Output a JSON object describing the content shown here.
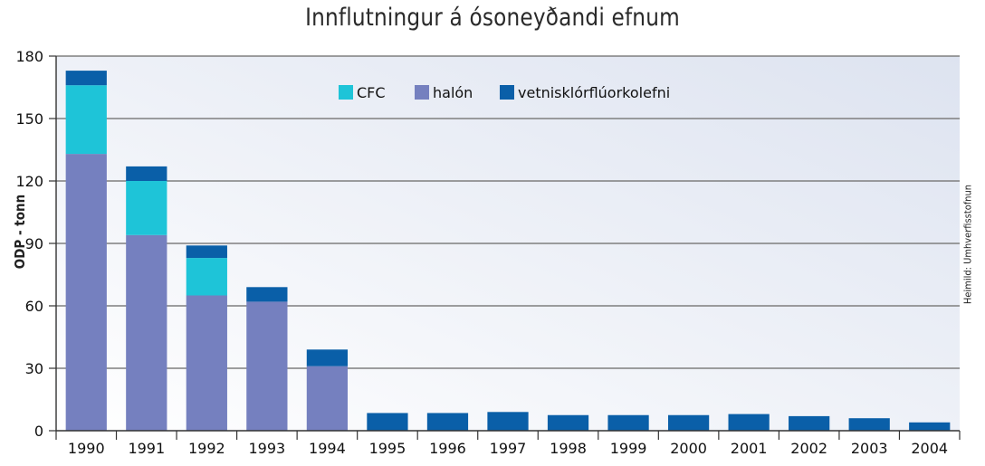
{
  "chart_data": {
    "type": "bar",
    "stacked": true,
    "title": "Innflutningur á ósoneyðandi efnum",
    "ylabel": "ODP - tonn",
    "xlabel": "",
    "source": "Heimild: Umhverfisstofnun",
    "categories": [
      "1990",
      "1991",
      "1992",
      "1993",
      "1994",
      "1995",
      "1996",
      "1997",
      "1998",
      "1999",
      "2000",
      "2001",
      "2002",
      "2003",
      "2004"
    ],
    "ylim": [
      0,
      180
    ],
    "yticks": [
      0,
      30,
      60,
      90,
      120,
      150,
      180
    ],
    "grid": true,
    "legend_position": "top-center",
    "series": [
      {
        "name": "halón",
        "color": "#7580bf",
        "values": [
          133,
          94,
          65,
          62,
          31,
          0,
          0,
          0,
          0,
          0,
          0,
          0,
          0,
          0,
          0
        ]
      },
      {
        "name": "CFC",
        "color": "#1ec4d8",
        "values": [
          33,
          26,
          18,
          0,
          0,
          0,
          0,
          0,
          0,
          0,
          0,
          0,
          0,
          0,
          0
        ]
      },
      {
        "name": "vetnisklórflúorkolefni",
        "color": "#0a5fa8",
        "values": [
          7,
          7,
          6,
          7,
          8,
          8.5,
          8.5,
          9,
          7.5,
          7.5,
          7.5,
          8,
          7,
          6,
          4
        ]
      }
    ],
    "legend_order": [
      "CFC",
      "halón",
      "vetnisklórflúorkolefni"
    ]
  }
}
